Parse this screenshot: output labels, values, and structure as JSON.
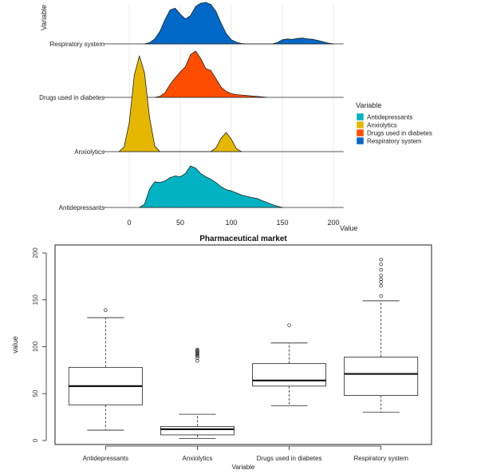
{
  "chart_data": [
    {
      "type": "area",
      "subtype": "ridgeline",
      "title": "",
      "xlabel": "Value",
      "ylabel": "Variable",
      "xlim": [
        -25,
        210
      ],
      "xticks": [
        0,
        50,
        100,
        150,
        200
      ],
      "grid": true,
      "legend_title": "Variable",
      "legend_position": "right",
      "series": [
        {
          "name": "Antidepressants",
          "color": "#00B2C2",
          "x": [
            10,
            15,
            20,
            25,
            30,
            35,
            40,
            45,
            50,
            55,
            60,
            65,
            70,
            75,
            80,
            85,
            90,
            95,
            100,
            105,
            110,
            115,
            120,
            125,
            130,
            135,
            140,
            145,
            150
          ],
          "density": [
            0.0,
            0.08,
            0.45,
            0.62,
            0.6,
            0.64,
            0.72,
            0.76,
            0.74,
            0.82,
            1.0,
            0.95,
            0.82,
            0.74,
            0.68,
            0.6,
            0.5,
            0.43,
            0.4,
            0.35,
            0.3,
            0.27,
            0.24,
            0.22,
            0.17,
            0.12,
            0.07,
            0.03,
            0.0
          ]
        },
        {
          "name": "Anxiolytics",
          "color": "#E5B700",
          "x": [
            -10,
            -5,
            0,
            5,
            10,
            15,
            20,
            25,
            30,
            35,
            40,
            45,
            50,
            55,
            60,
            65,
            70,
            75,
            80,
            85,
            90,
            95,
            100,
            105,
            110
          ],
          "density": [
            0.0,
            0.05,
            0.3,
            0.8,
            1.0,
            0.82,
            0.35,
            0.06,
            0.0,
            0.0,
            0.0,
            0.0,
            0.0,
            0.0,
            0.0,
            0.0,
            0.0,
            0.0,
            0.0,
            0.04,
            0.14,
            0.2,
            0.13,
            0.03,
            0.0
          ]
        },
        {
          "name": "Drugs used in diabetes",
          "color": "#FF4D00",
          "x": [
            25,
            30,
            35,
            40,
            45,
            50,
            55,
            60,
            65,
            70,
            75,
            80,
            85,
            90,
            95,
            100,
            105,
            110,
            115,
            120,
            125,
            130,
            135
          ],
          "density": [
            0.0,
            0.02,
            0.1,
            0.28,
            0.42,
            0.55,
            0.66,
            0.92,
            1.0,
            0.84,
            0.62,
            0.58,
            0.4,
            0.22,
            0.13,
            0.08,
            0.06,
            0.05,
            0.04,
            0.03,
            0.02,
            0.01,
            0.0
          ]
        },
        {
          "name": "Respiratory system",
          "color": "#0069C8",
          "x": [
            15,
            20,
            25,
            30,
            35,
            40,
            45,
            50,
            55,
            60,
            65,
            70,
            75,
            80,
            85,
            90,
            95,
            100,
            105,
            110,
            115,
            120,
            125,
            130,
            135,
            140,
            145,
            150,
            155,
            160,
            165,
            170,
            175,
            180,
            185,
            190,
            195,
            200
          ],
          "density": [
            0.0,
            0.03,
            0.12,
            0.3,
            0.58,
            0.82,
            0.86,
            0.72,
            0.6,
            0.68,
            0.9,
            0.98,
            1.0,
            0.95,
            0.78,
            0.5,
            0.25,
            0.1,
            0.04,
            0.01,
            0.0,
            0.0,
            0.0,
            0.0,
            0.0,
            0.0,
            0.03,
            0.1,
            0.12,
            0.11,
            0.13,
            0.14,
            0.12,
            0.11,
            0.08,
            0.05,
            0.02,
            0.0
          ]
        }
      ]
    },
    {
      "type": "box",
      "title": "Pharmaceutical market",
      "xlabel": "Variable",
      "ylabel": "value",
      "ylim": [
        -5,
        205
      ],
      "yticks": [
        0,
        50,
        100,
        150,
        200
      ],
      "categories": [
        "Antidepressants",
        "Anxiolytics",
        "Drugs used in diabetes",
        "Respiratory system"
      ],
      "boxes": [
        {
          "min": 11,
          "q1": 38,
          "median": 58,
          "q3": 78,
          "max": 131,
          "outliers": [
            139
          ]
        },
        {
          "min": 2,
          "q1": 6,
          "median": 12,
          "q3": 15,
          "max": 28,
          "outliers": [
            85,
            88,
            90,
            91,
            92,
            93,
            94,
            95,
            96,
            97
          ]
        },
        {
          "min": 37,
          "q1": 58,
          "median": 64,
          "q3": 82,
          "max": 104,
          "outliers": [
            123
          ]
        },
        {
          "min": 30,
          "q1": 48,
          "median": 71,
          "q3": 89,
          "max": 149,
          "outliers": [
            154,
            165,
            169,
            172,
            176,
            182,
            188,
            193
          ]
        }
      ]
    }
  ]
}
